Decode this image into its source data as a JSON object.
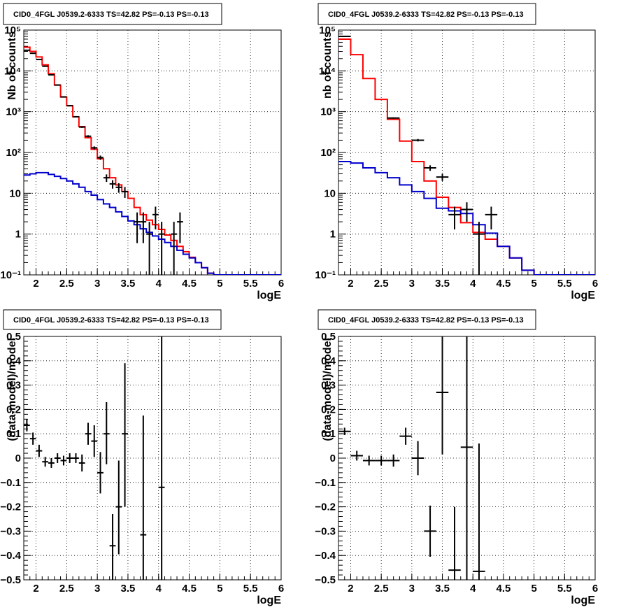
{
  "chart_data": [
    {
      "type": "step",
      "title": "CID0_4FGL J0539.2-6333 TS=42.82 PS=-0.13 PS=-0.13",
      "xlabel": "logE",
      "ylabel": "Nb of counts",
      "log_y": true,
      "xlim": [
        1.8,
        6
      ],
      "ylim": [
        0.1,
        100000
      ],
      "x_ticks": [
        2,
        2.5,
        3,
        3.5,
        4,
        4.5,
        5,
        5.5,
        6
      ],
      "x_tick_labels": [
        "2",
        "2.5",
        "3",
        "3.5",
        "4",
        "4.5",
        "5",
        "5.5",
        "6"
      ],
      "y_ticks": [
        0.1,
        1,
        10,
        100,
        1000,
        10000,
        100000
      ],
      "y_tick_labels": [
        "10⁻¹",
        "1",
        "10",
        "10²",
        "10³",
        "10⁴",
        "10⁵"
      ],
      "grid": true,
      "bin_edges": [
        1.8,
        1.9,
        2.0,
        2.1,
        2.2,
        2.3,
        2.4,
        2.5,
        2.6,
        2.7,
        2.8,
        2.9,
        3.0,
        3.1,
        3.2,
        3.3,
        3.4,
        3.5,
        3.6,
        3.7,
        3.8,
        3.9,
        4.0,
        4.1,
        4.2,
        4.3,
        4.4,
        4.5,
        4.6,
        4.7,
        4.8,
        4.9,
        5.0,
        5.1,
        5.2,
        5.3,
        5.4,
        5.5,
        5.6,
        5.7,
        5.8,
        5.9,
        6.0
      ],
      "series": [
        {
          "color": "#ff0000",
          "values": [
            38000,
            30000,
            22000,
            14000,
            8500,
            4500,
            2300,
            1400,
            750,
            430,
            230,
            120,
            70,
            40,
            24,
            16,
            11,
            7.5,
            4.5,
            3,
            2.2,
            1.7,
            1.3,
            0.95,
            0.7,
            0.5,
            0.37,
            0.27,
            0.2,
            0.15,
            0.11,
            0.1,
            0.1,
            0.1,
            0.1,
            0.1,
            0.1,
            0.1,
            0.1,
            0.1,
            0.1,
            0.1
          ]
        },
        {
          "color": "#0000cc",
          "values": [
            28,
            30,
            32,
            32,
            29,
            26,
            23,
            20,
            17,
            14,
            11,
            9,
            7,
            5.5,
            4.5,
            3.5,
            2.7,
            2.1,
            1.7,
            1.35,
            1.1,
            0.9,
            0.75,
            0.62,
            0.5,
            0.4,
            0.32,
            0.26,
            0.2,
            0.15,
            0.11,
            0.1,
            0.1,
            0.1,
            0.1,
            0.1,
            0.1,
            0.1,
            0.1,
            0.1,
            0.1,
            0.1
          ]
        }
      ],
      "points": [
        {
          "x": 1.85,
          "y": 32000,
          "xerr": 0.05,
          "ylo": 31500,
          "yhi": 32500
        },
        {
          "x": 1.95,
          "y": 27000,
          "xerr": 0.05,
          "ylo": 26500,
          "yhi": 27500
        },
        {
          "x": 2.05,
          "y": 19000,
          "xerr": 0.05,
          "ylo": 18700,
          "yhi": 19300
        },
        {
          "x": 2.15,
          "y": 13000,
          "xerr": 0.05,
          "ylo": 12800,
          "yhi": 13200
        },
        {
          "x": 2.25,
          "y": 8000,
          "xerr": 0.05,
          "ylo": 7900,
          "yhi": 8100
        },
        {
          "x": 2.35,
          "y": 4500,
          "xerr": 0.05,
          "ylo": 4400,
          "yhi": 4600
        },
        {
          "x": 2.45,
          "y": 2300,
          "xerr": 0.05,
          "ylo": 2250,
          "yhi": 2350
        },
        {
          "x": 2.55,
          "y": 1400,
          "xerr": 0.05,
          "ylo": 1360,
          "yhi": 1440
        },
        {
          "x": 2.65,
          "y": 750,
          "xerr": 0.05,
          "ylo": 725,
          "yhi": 775
        },
        {
          "x": 2.75,
          "y": 420,
          "xerr": 0.05,
          "ylo": 400,
          "yhi": 440
        },
        {
          "x": 2.85,
          "y": 250,
          "xerr": 0.05,
          "ylo": 235,
          "yhi": 265
        },
        {
          "x": 2.95,
          "y": 130,
          "xerr": 0.05,
          "ylo": 119,
          "yhi": 141
        },
        {
          "x": 3.05,
          "y": 75,
          "xerr": 0.05,
          "ylo": 66,
          "yhi": 84
        },
        {
          "x": 3.15,
          "y": 24,
          "xerr": 0.05,
          "ylo": 19,
          "yhi": 29
        },
        {
          "x": 3.25,
          "y": 17,
          "xerr": 0.05,
          "ylo": 13,
          "yhi": 21
        },
        {
          "x": 3.35,
          "y": 14,
          "xerr": 0.05,
          "ylo": 10.3,
          "yhi": 17.7
        },
        {
          "x": 3.45,
          "y": 11,
          "xerr": 0.05,
          "ylo": 7.7,
          "yhi": 14.3
        },
        {
          "x": 3.65,
          "y": 2,
          "xerr": 0.05,
          "ylo": 0.6,
          "yhi": 3.4
        },
        {
          "x": 3.75,
          "y": 2,
          "xerr": 0.05,
          "ylo": 0.6,
          "yhi": 3.4
        },
        {
          "x": 3.85,
          "y": 1,
          "xerr": 0.05,
          "ylo": 0.1,
          "yhi": 2
        },
        {
          "x": 3.95,
          "y": 3,
          "xerr": 0.05,
          "ylo": 1.3,
          "yhi": 4.7
        },
        {
          "x": 4.05,
          "y": 1,
          "xerr": 0.05,
          "ylo": 0.1,
          "yhi": 2
        },
        {
          "x": 4.25,
          "y": 1,
          "xerr": 0.05,
          "ylo": 0.1,
          "yhi": 2
        },
        {
          "x": 4.35,
          "y": 2,
          "xerr": 0.05,
          "ylo": 0.6,
          "yhi": 3.4
        }
      ]
    },
    {
      "type": "step",
      "title": "CID0_4FGL J0539.2-6333 TS=42.82 PS=-0.13 PS=-0.13",
      "xlabel": "logE",
      "ylabel": "nb of counts",
      "log_y": true,
      "xlim": [
        1.8,
        6
      ],
      "ylim": [
        0.1,
        100000
      ],
      "x_ticks": [
        2,
        2.5,
        3,
        3.5,
        4,
        4.5,
        5,
        5.5,
        6
      ],
      "x_tick_labels": [
        "2",
        "2.5",
        "3",
        "3.5",
        "4",
        "4.5",
        "5",
        "5.5",
        "6"
      ],
      "y_ticks": [
        0.1,
        1,
        10,
        100,
        1000,
        10000,
        100000
      ],
      "y_tick_labels": [
        "10⁻¹",
        "1",
        "10",
        "10²",
        "10³",
        "10⁴",
        "10⁵"
      ],
      "grid": true,
      "bin_edges": [
        1.8,
        2.0,
        2.2,
        2.4,
        2.6,
        2.8,
        3.0,
        3.2,
        3.4,
        3.6,
        3.8,
        4.0,
        4.2,
        4.4,
        4.6,
        4.8,
        5.0,
        5.2,
        5.4,
        5.6,
        5.8,
        6.0
      ],
      "series": [
        {
          "color": "#ff0000",
          "values": [
            60000,
            25000,
            6500,
            2000,
            650,
            190,
            60,
            20,
            8,
            4.5,
            1.9,
            1.1,
            0.75,
            0.5,
            0.26,
            0.13,
            0.1,
            0.1,
            0.1,
            0.1,
            0.1
          ]
        },
        {
          "color": "#0000cc",
          "values": [
            60,
            55,
            42,
            32,
            24,
            16,
            11,
            7.5,
            4.3,
            3.7,
            3.2,
            1.7,
            1.05,
            0.5,
            0.26,
            0.13,
            0.1,
            0.1,
            0.1,
            0.1,
            0.1
          ]
        }
      ],
      "points": [
        {
          "x": 1.9,
          "y": 70000,
          "xerr": 0.1,
          "ylo": 69400,
          "yhi": 70600
        },
        {
          "x": 2.7,
          "y": 700,
          "xerr": 0.1,
          "ylo": 675,
          "yhi": 725
        },
        {
          "x": 3.1,
          "y": 200,
          "xerr": 0.1,
          "ylo": 186,
          "yhi": 214
        },
        {
          "x": 3.3,
          "y": 42,
          "xerr": 0.1,
          "ylo": 35.5,
          "yhi": 48.5
        },
        {
          "x": 3.5,
          "y": 25,
          "xerr": 0.1,
          "ylo": 20,
          "yhi": 30
        },
        {
          "x": 3.7,
          "y": 3,
          "xerr": 0.1,
          "ylo": 1.3,
          "yhi": 4.7
        },
        {
          "x": 3.9,
          "y": 4,
          "xerr": 0.1,
          "ylo": 2,
          "yhi": 6
        },
        {
          "x": 4.1,
          "y": 1,
          "xerr": 0.1,
          "ylo": 0.1,
          "yhi": 2
        },
        {
          "x": 4.3,
          "y": 3,
          "xerr": 0.1,
          "ylo": 1.3,
          "yhi": 4.7
        }
      ]
    },
    {
      "type": "errorbar",
      "title": "CID0_4FGL J0539.2-6333 TS=42.82 PS=-0.13 PS=-0.13",
      "xlabel": "logE",
      "ylabel": "(data-model)/model",
      "log_y": false,
      "xlim": [
        1.8,
        6
      ],
      "ylim": [
        -0.5,
        0.5
      ],
      "x_ticks": [
        2,
        2.5,
        3,
        3.5,
        4,
        4.5,
        5,
        5.5,
        6
      ],
      "x_tick_labels": [
        "2",
        "2.5",
        "3",
        "3.5",
        "4",
        "4.5",
        "5",
        "5.5",
        "6"
      ],
      "y_ticks": [
        -0.5,
        -0.4,
        -0.3,
        -0.2,
        -0.1,
        0,
        0.1,
        0.2,
        0.3,
        0.4,
        0.5
      ],
      "y_tick_labels": [
        "−0.5",
        "−0.4",
        "−0.3",
        "−0.2",
        "−0.1",
        "0",
        "0.1",
        "0.2",
        "0.3",
        "0.4",
        "0.5"
      ],
      "grid": true,
      "points": [
        {
          "x": 1.85,
          "y": 0.135,
          "xerr": 0.05,
          "ylo": 0.11,
          "yhi": 0.16
        },
        {
          "x": 1.95,
          "y": 0.08,
          "xerr": 0.05,
          "ylo": 0.055,
          "yhi": 0.105
        },
        {
          "x": 2.05,
          "y": 0.03,
          "xerr": 0.05,
          "ylo": 0.005,
          "yhi": 0.055
        },
        {
          "x": 2.15,
          "y": -0.015,
          "xerr": 0.05,
          "ylo": -0.035,
          "yhi": 0.005
        },
        {
          "x": 2.25,
          "y": -0.02,
          "xerr": 0.05,
          "ylo": -0.04,
          "yhi": 0.0
        },
        {
          "x": 2.35,
          "y": 0.0,
          "xerr": 0.05,
          "ylo": -0.02,
          "yhi": 0.02
        },
        {
          "x": 2.45,
          "y": -0.01,
          "xerr": 0.05,
          "ylo": -0.03,
          "yhi": 0.01
        },
        {
          "x": 2.55,
          "y": 0.0,
          "xerr": 0.05,
          "ylo": -0.02,
          "yhi": 0.02
        },
        {
          "x": 2.65,
          "y": 0.0,
          "xerr": 0.05,
          "ylo": -0.02,
          "yhi": 0.02
        },
        {
          "x": 2.75,
          "y": -0.02,
          "xerr": 0.05,
          "ylo": -0.055,
          "yhi": 0.015
        },
        {
          "x": 2.85,
          "y": 0.1,
          "xerr": 0.05,
          "ylo": 0.055,
          "yhi": 0.145
        },
        {
          "x": 2.95,
          "y": 0.07,
          "xerr": 0.05,
          "ylo": 0.005,
          "yhi": 0.135
        },
        {
          "x": 3.05,
          "y": -0.06,
          "xerr": 0.05,
          "ylo": -0.145,
          "yhi": 0.025
        },
        {
          "x": 3.15,
          "y": 0.1,
          "xerr": 0.05,
          "ylo": -0.025,
          "yhi": 0.23
        },
        {
          "x": 3.25,
          "y": -0.36,
          "xerr": 0.05,
          "ylo": -0.5,
          "yhi": -0.23
        },
        {
          "x": 3.35,
          "y": -0.2,
          "xerr": 0.05,
          "ylo": -0.395,
          "yhi": -0.01
        },
        {
          "x": 3.45,
          "y": 0.1,
          "xerr": 0.05,
          "ylo": -0.2,
          "yhi": 0.39
        },
        {
          "x": 3.75,
          "y": -0.315,
          "xerr": 0.05,
          "ylo": -0.5,
          "yhi": 0.175
        },
        {
          "x": 4.05,
          "y": -0.12,
          "xerr": 0.05,
          "ylo": -0.5,
          "yhi": 0.5
        }
      ]
    },
    {
      "type": "errorbar",
      "title": "CID0_4FGL J0539.2-6333 TS=42.82 PS=-0.13 PS=-0.13",
      "xlabel": "logE",
      "ylabel": "(data-model)/model",
      "log_y": false,
      "xlim": [
        1.8,
        6
      ],
      "ylim": [
        -0.5,
        0.5
      ],
      "x_ticks": [
        2,
        2.5,
        3,
        3.5,
        4,
        4.5,
        5,
        5.5,
        6
      ],
      "x_tick_labels": [
        "2",
        "2.5",
        "3",
        "3.5",
        "4",
        "4.5",
        "5",
        "5.5",
        "6"
      ],
      "y_ticks": [
        -0.5,
        -0.4,
        -0.3,
        -0.2,
        -0.1,
        0,
        0.1,
        0.2,
        0.3,
        0.4,
        0.5
      ],
      "y_tick_labels": [
        "−0.5",
        "−0.4",
        "−0.3",
        "−0.2",
        "−0.1",
        "0",
        "0.1",
        "0.2",
        "0.3",
        "0.4",
        "0.5"
      ],
      "grid": true,
      "points": [
        {
          "x": 1.9,
          "y": 0.11,
          "xerr": 0.1,
          "ylo": 0.095,
          "yhi": 0.125
        },
        {
          "x": 2.1,
          "y": 0.01,
          "xerr": 0.1,
          "ylo": -0.01,
          "yhi": 0.03
        },
        {
          "x": 2.3,
          "y": -0.01,
          "xerr": 0.1,
          "ylo": -0.03,
          "yhi": 0.01
        },
        {
          "x": 2.5,
          "y": -0.01,
          "xerr": 0.1,
          "ylo": -0.03,
          "yhi": 0.01
        },
        {
          "x": 2.7,
          "y": -0.01,
          "xerr": 0.1,
          "ylo": -0.035,
          "yhi": 0.015
        },
        {
          "x": 2.9,
          "y": 0.09,
          "xerr": 0.1,
          "ylo": 0.055,
          "yhi": 0.125
        },
        {
          "x": 3.1,
          "y": 0.0,
          "xerr": 0.1,
          "ylo": -0.07,
          "yhi": 0.07
        },
        {
          "x": 3.3,
          "y": -0.3,
          "xerr": 0.1,
          "ylo": -0.405,
          "yhi": -0.195
        },
        {
          "x": 3.5,
          "y": 0.27,
          "xerr": 0.1,
          "ylo": 0.015,
          "yhi": 0.5
        },
        {
          "x": 3.7,
          "y": -0.46,
          "xerr": 0.1,
          "ylo": -0.5,
          "yhi": -0.2
        },
        {
          "x": 3.9,
          "y": 0.045,
          "xerr": 0.1,
          "ylo": -0.5,
          "yhi": 0.5
        },
        {
          "x": 4.1,
          "y": -0.465,
          "xerr": 0.1,
          "ylo": -0.5,
          "yhi": 0.06
        }
      ]
    }
  ]
}
